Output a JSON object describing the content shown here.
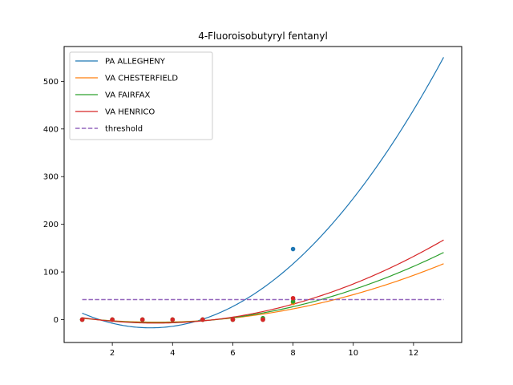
{
  "chart_data": {
    "type": "line",
    "title": "4-Fluoroisobutyryl fentanyl",
    "xlabel": "",
    "ylabel": "",
    "xlim": [
      0.4,
      13.6
    ],
    "ylim": [
      -48,
      573
    ],
    "xticks": [
      2,
      4,
      6,
      8,
      10,
      12
    ],
    "yticks": [
      0,
      100,
      200,
      300,
      400,
      500
    ],
    "grid": false,
    "legend_position": "top-left",
    "fit_range": [
      1,
      13
    ],
    "series": [
      {
        "name": "PA ALLEGHENY",
        "color": "#1f77b4",
        "fit_points": [
          [
            1,
            18
          ],
          [
            3,
            -19
          ],
          [
            5,
            -6
          ],
          [
            7,
            63
          ],
          [
            9,
            186
          ],
          [
            11,
            350
          ],
          [
            13,
            543
          ]
        ],
        "observed": [
          [
            1,
            0
          ],
          [
            2,
            0
          ],
          [
            3,
            0
          ],
          [
            4,
            0
          ],
          [
            5,
            0
          ],
          [
            6,
            0
          ],
          [
            7,
            0
          ],
          [
            8,
            148
          ]
        ]
      },
      {
        "name": "VA CHESTERFIELD",
        "color": "#ff7f0e",
        "fit_points": [
          [
            1,
            4
          ],
          [
            3,
            -6
          ],
          [
            5,
            -3
          ],
          [
            7,
            10
          ],
          [
            9,
            39
          ],
          [
            11,
            72
          ],
          [
            13,
            116
          ]
        ],
        "observed": [
          [
            1,
            0
          ],
          [
            2,
            0
          ],
          [
            3,
            0
          ],
          [
            4,
            0
          ],
          [
            5,
            0
          ],
          [
            6,
            0
          ],
          [
            7,
            0
          ],
          [
            8,
            35
          ]
        ]
      },
      {
        "name": "VA FAIRFAX",
        "color": "#2ca02c",
        "fit_points": [
          [
            1,
            4
          ],
          [
            3,
            -6
          ],
          [
            5,
            -3
          ],
          [
            7,
            12
          ],
          [
            9,
            46
          ],
          [
            11,
            86
          ],
          [
            13,
            140
          ]
        ],
        "observed": [
          [
            1,
            0
          ],
          [
            2,
            0
          ],
          [
            3,
            0
          ],
          [
            4,
            0
          ],
          [
            5,
            0
          ],
          [
            6,
            0
          ],
          [
            7,
            3
          ],
          [
            8,
            38
          ]
        ]
      },
      {
        "name": "VA HENRICO",
        "color": "#d62728",
        "fit_points": [
          [
            1,
            4
          ],
          [
            3,
            -6
          ],
          [
            5,
            -3
          ],
          [
            7,
            14
          ],
          [
            9,
            54
          ],
          [
            11,
            103
          ],
          [
            13,
            166
          ]
        ],
        "observed": [
          [
            1,
            0
          ],
          [
            2,
            0
          ],
          [
            3,
            0
          ],
          [
            4,
            0
          ],
          [
            5,
            0
          ],
          [
            6,
            0
          ],
          [
            7,
            0
          ],
          [
            8,
            45
          ]
        ]
      }
    ],
    "threshold": {
      "name": "threshold",
      "value": 42,
      "x_range": [
        1,
        13
      ],
      "color": "#9467bd",
      "style": "dashed"
    }
  }
}
